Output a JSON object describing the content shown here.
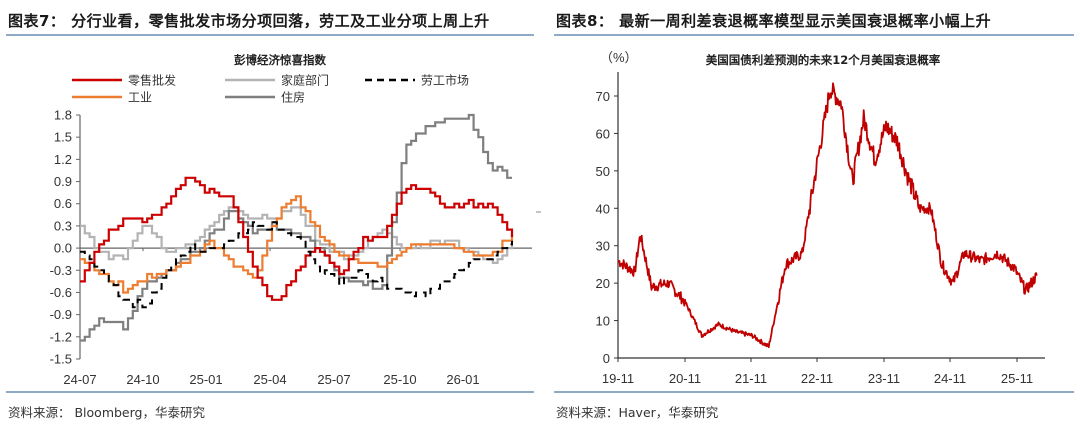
{
  "left": {
    "figure_title": "图表7：  分行业看，零售批发市场分项回落，劳工及工业分项上周上升",
    "source": "资料来源：  Bloomberg，华泰研究"
  },
  "right": {
    "figure_title": "图表8：  最新一周利差衰退概率模型显示美国衰退概率小幅上升",
    "source": "资料来源：Haver，华泰研究"
  },
  "chart_data": [
    {
      "type": "line",
      "title": "彭博经济惊喜指数",
      "xlabel": "",
      "ylabel": "",
      "ylim": [
        -1.5,
        1.8
      ],
      "yticks": [
        "1.8",
        "1.5",
        "1.2",
        "0.9",
        "0.6",
        "0.3",
        "0.0",
        "-0.3",
        "-0.6",
        "-0.9",
        "-1.2",
        "-1.5"
      ],
      "xticks": [
        "24-07",
        "24-10",
        "25-01",
        "25-04",
        "25-07",
        "25-10",
        "26-01"
      ],
      "grid": false,
      "legend_position": "top",
      "x": [
        "24-07",
        "24-08",
        "24-09",
        "24-10",
        "24-11",
        "24-12",
        "25-01",
        "25-02",
        "25-03",
        "25-04",
        "25-05",
        "25-06",
        "25-07",
        "25-08",
        "25-09",
        "25-10",
        "25-11",
        "25-12",
        "26-01",
        "26-02",
        "26-03"
      ],
      "series": [
        {
          "name": "零售批发",
          "color": "#cc0000",
          "style": "solid",
          "values": [
            -0.45,
            0.1,
            0.4,
            0.38,
            0.6,
            1.0,
            0.75,
            0.65,
            -0.25,
            -0.8,
            -0.3,
            0.05,
            -0.35,
            0.1,
            0.15,
            0.82,
            0.78,
            0.55,
            0.6,
            0.58,
            0.15
          ]
        },
        {
          "name": "家庭部门",
          "color": "#b3b3b3",
          "style": "solid",
          "values": [
            0.3,
            -0.1,
            -0.12,
            0.35,
            -0.05,
            0.05,
            0.3,
            0.55,
            0.4,
            0.45,
            0.55,
            0.1,
            -0.1,
            -0.05,
            0.25,
            0.0,
            0.05,
            0.1,
            0.0,
            -0.2,
            0.05
          ]
        },
        {
          "name": "劳工市场",
          "color": "#000000",
          "style": "dashed",
          "values": [
            -0.05,
            -0.3,
            -0.7,
            -0.78,
            -0.3,
            0.0,
            -0.02,
            0.1,
            0.3,
            0.3,
            0.15,
            -0.3,
            -0.45,
            -0.3,
            -0.5,
            -0.62,
            -0.62,
            -0.4,
            -0.2,
            -0.1,
            0.1
          ]
        },
        {
          "name": "工业",
          "color": "#ed7d31",
          "style": "solid",
          "values": [
            -0.15,
            -0.35,
            -0.55,
            -0.42,
            -0.3,
            -0.15,
            0.1,
            -0.2,
            -0.45,
            0.4,
            0.7,
            0.2,
            -0.1,
            -0.2,
            -0.25,
            0.0,
            0.02,
            0.05,
            -0.05,
            -0.1,
            0.2
          ]
        },
        {
          "name": "住房",
          "color": "#7f7f7f",
          "style": "solid",
          "values": [
            -1.25,
            -0.95,
            -1.05,
            -0.5,
            -0.3,
            -0.1,
            0.15,
            0.5,
            0.25,
            0.3,
            0.2,
            0.0,
            -0.4,
            -0.5,
            -0.5,
            1.4,
            1.6,
            1.75,
            1.75,
            1.1,
            0.95
          ]
        }
      ]
    },
    {
      "type": "line",
      "title": "美国国债利差预测的未来12个月美国衰退概率",
      "ylabel": "（%）",
      "xlabel": "",
      "ylim": [
        0,
        70
      ],
      "yticks": [
        "0",
        "10",
        "20",
        "30",
        "40",
        "50",
        "60",
        "70"
      ],
      "xticks": [
        "19-11",
        "20-11",
        "21-11",
        "22-11",
        "23-11",
        "24-11",
        "25-11"
      ],
      "grid": false,
      "x": [
        "19-11",
        "20-02",
        "20-03",
        "20-05",
        "20-08",
        "20-11",
        "21-02",
        "21-05",
        "21-08",
        "21-11",
        "22-02",
        "22-05",
        "22-08",
        "22-11",
        "23-01",
        "23-03",
        "23-05",
        "23-07",
        "23-09",
        "23-11",
        "24-01",
        "24-03",
        "24-05",
        "24-07",
        "24-09",
        "24-11",
        "25-01",
        "25-04",
        "25-07",
        "25-10",
        "25-12",
        "26-02"
      ],
      "series": [
        {
          "name": "衰退概率",
          "color": "#c00000",
          "values": [
            26,
            23,
            33,
            19,
            20,
            15,
            6,
            9,
            7,
            6,
            3,
            25,
            28,
            55,
            72,
            68,
            47,
            64,
            53,
            62,
            58,
            48,
            40,
            40,
            25,
            20,
            28,
            26,
            28,
            24,
            18,
            22
          ]
        }
      ]
    }
  ]
}
